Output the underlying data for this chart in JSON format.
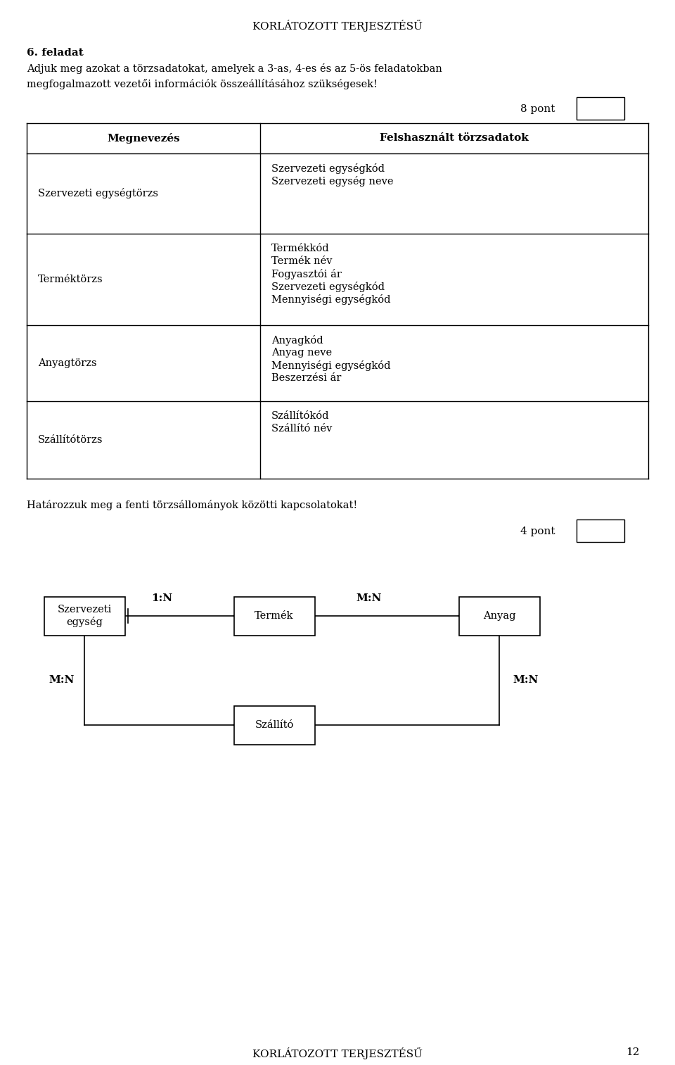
{
  "title_top": "KORLÁTOZOTT TERJESZTÉSŰ",
  "title_bottom": "KORLÁTOZOTT TERJESZTÉSŰ",
  "page_number": "12",
  "task_label": "6. feladat",
  "task_line1": "Adjuk meg azokat a törzsadatokat, amelyek a 3-as, 4-es és az 5-ös feladatokban",
  "task_line2": "megfogalmazott vezetői információk összeállításához szükségesek!",
  "points_1": "8 pont",
  "points_2": "4 pont",
  "col1_header": "Megnevezés",
  "col2_header": "Felshasznált törzsadatok",
  "rows": [
    {
      "name": "Szervezeti egységtörzs",
      "data": [
        "Szervezeti egységkód",
        "Szervezeti egység neve"
      ]
    },
    {
      "name": "Terméktörzs",
      "data": [
        "Termékkód",
        "Termék név",
        "Fogyasztói ár",
        "Szervezeti egységkód",
        "Mennyiségi egységkód"
      ]
    },
    {
      "name": "Anyagtörzs",
      "data": [
        "Anyagkód",
        "Anyag neve",
        "Mennyiségi egységkód",
        "Beszerzési ár"
      ]
    },
    {
      "name": "Szállítótörzs",
      "data": [
        "Szállítókód",
        "Szállító név"
      ]
    }
  ],
  "diagram_text": "Határozzuk meg a fenti törzsállományok közötti kapcsolatokat!",
  "bg_color": "#ffffff",
  "text_color": "#000000"
}
